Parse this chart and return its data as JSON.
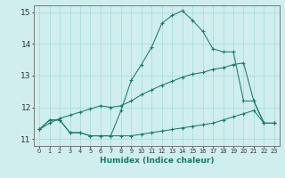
{
  "bg_color": "#d0eeee",
  "grid_color": "#aadddd",
  "line_color": "#1a7a6a",
  "xlabel": "Humidex (Indice chaleur)",
  "xlim_min": -0.5,
  "xlim_max": 23.5,
  "ylim_min": 10.78,
  "ylim_max": 15.22,
  "yticks": [
    11,
    12,
    13,
    14,
    15
  ],
  "xticks": [
    0,
    1,
    2,
    3,
    4,
    5,
    6,
    7,
    8,
    9,
    10,
    11,
    12,
    13,
    14,
    15,
    16,
    17,
    18,
    19,
    20,
    21,
    22,
    23
  ],
  "line_flat": {
    "x": [
      0,
      1,
      2,
      3,
      4,
      5,
      6,
      7,
      8,
      9,
      10,
      11,
      12,
      13,
      14,
      15,
      16,
      17,
      18,
      19,
      20,
      21,
      22,
      23
    ],
    "y": [
      11.3,
      11.6,
      11.6,
      11.2,
      11.2,
      11.1,
      11.1,
      11.1,
      11.1,
      11.1,
      11.15,
      11.2,
      11.25,
      11.3,
      11.35,
      11.4,
      11.45,
      11.5,
      11.6,
      11.7,
      11.8,
      11.9,
      11.5,
      11.5
    ]
  },
  "line_curve": {
    "x": [
      0,
      1,
      2,
      3,
      4,
      5,
      6,
      7,
      8,
      9,
      10,
      11,
      12,
      13,
      14,
      15,
      16,
      17,
      18,
      19,
      20,
      21,
      22,
      23
    ],
    "y": [
      11.3,
      11.6,
      11.6,
      11.2,
      11.2,
      11.1,
      11.1,
      11.1,
      11.9,
      12.85,
      13.35,
      13.9,
      14.65,
      14.9,
      15.05,
      14.75,
      14.4,
      13.85,
      13.75,
      13.75,
      12.2,
      12.2,
      11.5,
      11.5
    ]
  },
  "line_diag": {
    "x": [
      0,
      1,
      2,
      3,
      4,
      5,
      6,
      7,
      8,
      9,
      10,
      11,
      12,
      13,
      14,
      15,
      16,
      17,
      18,
      19,
      20,
      21,
      22,
      23
    ],
    "y": [
      11.3,
      11.5,
      11.65,
      11.75,
      11.85,
      11.95,
      12.05,
      12.0,
      12.05,
      12.2,
      12.4,
      12.55,
      12.7,
      12.82,
      12.95,
      13.05,
      13.1,
      13.2,
      13.25,
      13.35,
      13.4,
      12.2,
      11.5,
      11.5
    ]
  }
}
